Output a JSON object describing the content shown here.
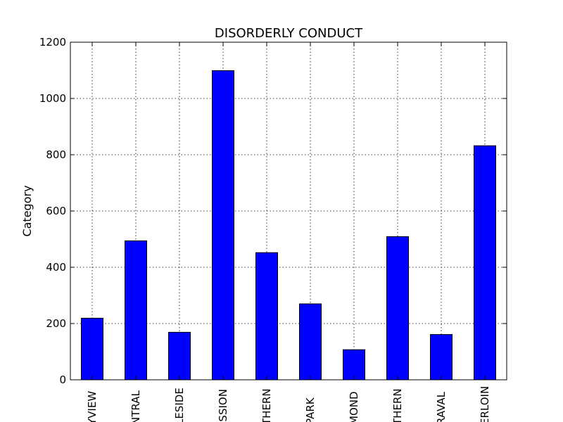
{
  "chart_data": {
    "type": "bar",
    "title": "DISORDERLY CONDUCT",
    "xlabel": "",
    "ylabel": "Category",
    "categories": [
      "YVIEW",
      "NTRAL",
      "LESIDE",
      "ISSION",
      "THERN",
      "PARK",
      "MOND",
      "THERN",
      "RAVAL",
      "ERLOIN"
    ],
    "values": [
      219,
      494,
      169,
      1099,
      452,
      270,
      107,
      509,
      161,
      832
    ],
    "ylim": [
      0,
      1200
    ],
    "yticks": [
      0,
      200,
      400,
      600,
      800,
      1000,
      1200
    ],
    "grid": true,
    "bar_color": "#0000ff"
  }
}
